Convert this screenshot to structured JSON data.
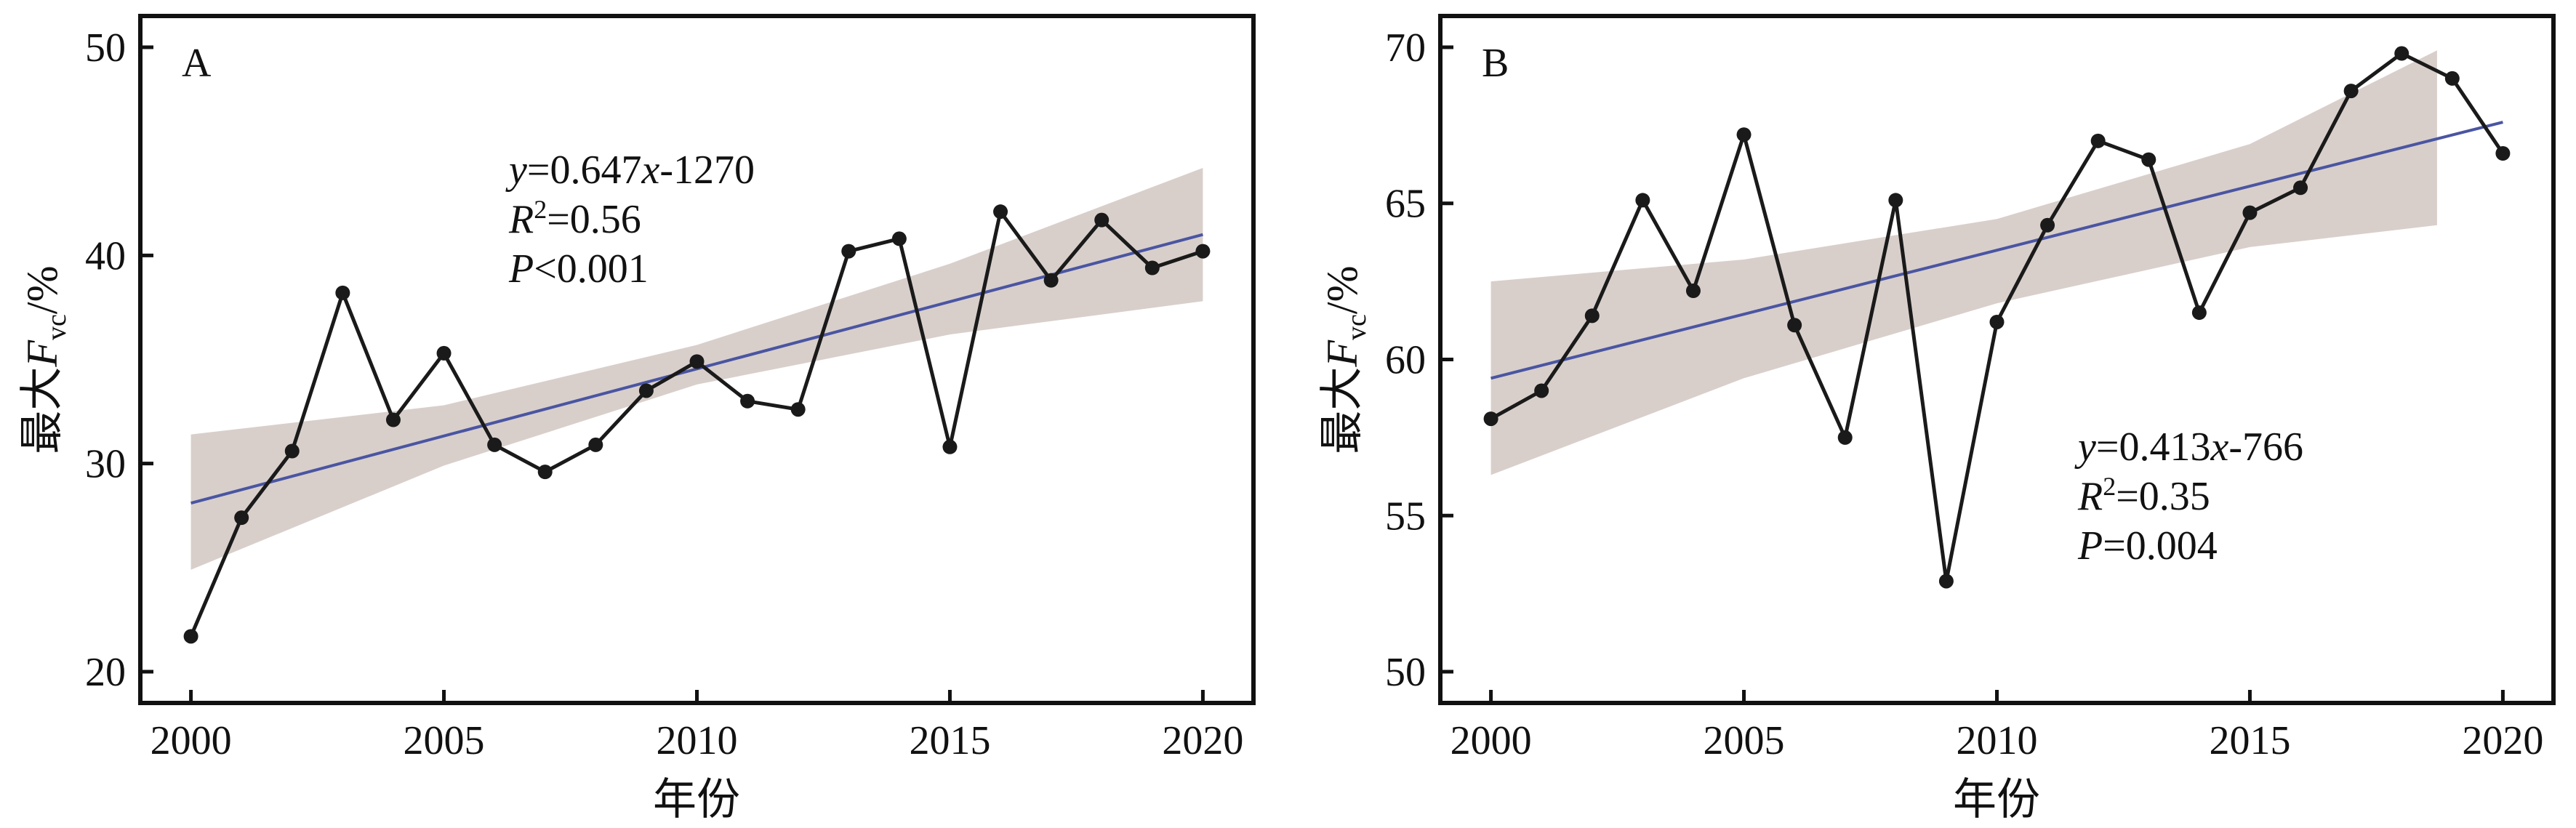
{
  "chart_data": [
    {
      "type": "line",
      "panel_label": "A",
      "xlabel": "年份",
      "ylabel": {
        "prefix": "最大",
        "var": "F",
        "sub": "vc",
        "suffix": "/%"
      },
      "xlim": [
        1999,
        2021
      ],
      "ylim": [
        18.5,
        51.5
      ],
      "xticks": [
        2000,
        2005,
        2010,
        2015,
        2020
      ],
      "yticks": [
        20,
        30,
        40,
        50
      ],
      "x": [
        2000,
        2001,
        2002,
        2003,
        2004,
        2005,
        2006,
        2007,
        2008,
        2009,
        2010,
        2011,
        2012,
        2013,
        2014,
        2015,
        2016,
        2017,
        2018,
        2019,
        2020
      ],
      "values": [
        21.7,
        27.4,
        30.6,
        38.2,
        32.1,
        35.3,
        30.9,
        29.6,
        30.9,
        33.5,
        34.9,
        33.0,
        32.6,
        40.2,
        40.8,
        30.8,
        42.1,
        38.8,
        41.7,
        39.4,
        40.2
      ],
      "fit": {
        "slope": 0.647,
        "intercept": -1270,
        "start": [
          2000,
          28.1
        ],
        "end": [
          2020,
          41.0
        ]
      },
      "ci_upper": [
        [
          2000,
          31.4
        ],
        [
          2005,
          32.8
        ],
        [
          2010,
          35.7
        ],
        [
          2015,
          39.6
        ],
        [
          2020,
          44.2
        ]
      ],
      "ci_lower": [
        [
          2000,
          24.9
        ],
        [
          2005,
          29.9
        ],
        [
          2010,
          33.8
        ],
        [
          2015,
          36.2
        ],
        [
          2020,
          37.8
        ]
      ],
      "annotations": {
        "eq_y": "y",
        "eq_rest": "=0.647",
        "eq_x": "x",
        "eq_tail": "-1270",
        "r2_r": "R",
        "r2_sup": "2",
        "r2_val": "=0.56",
        "p_p": "P",
        "p_val": "<0.001"
      }
    },
    {
      "type": "line",
      "panel_label": "B",
      "xlabel": "年份",
      "ylabel": {
        "prefix": "最大",
        "var": "F",
        "sub": "vc",
        "suffix": "/%"
      },
      "xlim": [
        1999,
        2021
      ],
      "ylim": [
        49,
        71
      ],
      "xticks": [
        2000,
        2005,
        2010,
        2015,
        2020
      ],
      "yticks": [
        50,
        55,
        60,
        65,
        70
      ],
      "x": [
        2000,
        2001,
        2002,
        2003,
        2004,
        2005,
        2006,
        2007,
        2008,
        2009,
        2010,
        2011,
        2012,
        2013,
        2014,
        2015,
        2016,
        2017,
        2018,
        2019,
        2020
      ],
      "values": [
        58.1,
        59.0,
        61.4,
        65.1,
        62.2,
        67.2,
        61.1,
        57.5,
        65.1,
        52.9,
        61.2,
        64.3,
        67.0,
        66.4,
        61.5,
        64.7,
        65.5,
        68.6,
        69.8,
        69.0,
        66.6
      ],
      "fit": {
        "slope": 0.413,
        "intercept": -766,
        "start": [
          2000,
          59.4
        ],
        "end": [
          2020,
          67.6
        ]
      },
      "ci_upper": [
        [
          2000,
          62.5
        ],
        [
          2005,
          63.2
        ],
        [
          2010,
          64.5
        ],
        [
          2015,
          66.9
        ],
        [
          2018.7,
          69.9
        ]
      ],
      "ci_lower": [
        [
          2000,
          56.3
        ],
        [
          2005,
          59.4
        ],
        [
          2010,
          61.8
        ],
        [
          2015,
          63.6
        ],
        [
          2018.7,
          64.3
        ]
      ],
      "annotations": {
        "eq_y": "y",
        "eq_rest": "=0.413",
        "eq_x": "x",
        "eq_tail": "-766",
        "r2_r": "R",
        "r2_sup": "2",
        "r2_val": "=0.35",
        "p_p": "P",
        "p_val": "=0.004"
      }
    }
  ],
  "colors": {
    "line": "#1a1a1a",
    "marker": "#1a1a1a",
    "fit": "#4a55a2",
    "band": "#d8cfcb"
  }
}
